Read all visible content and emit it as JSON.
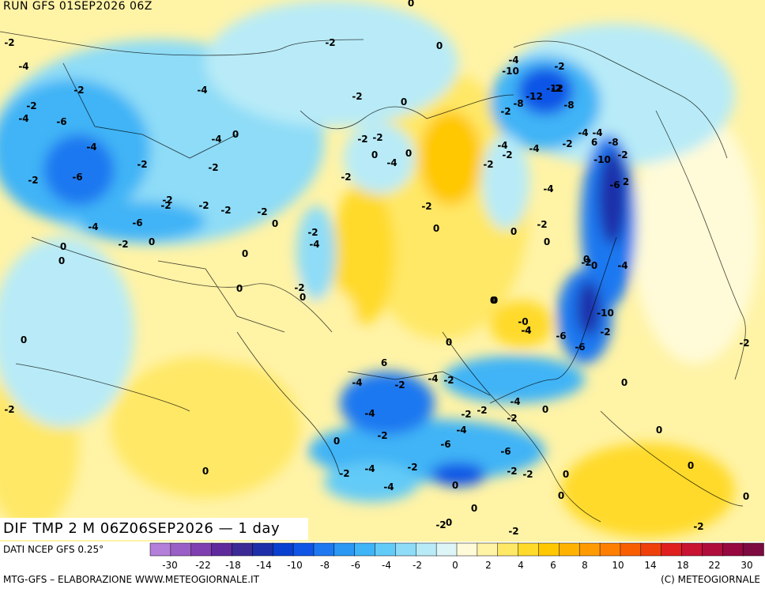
{
  "header": {
    "run_title": "RUN GFS 01SEP2026 06Z"
  },
  "footer": {
    "field_title": "DIF TMP 2 M 06Z06SEP2026 — 1 day",
    "source_label": "DATI NCEP GFS 0.25°",
    "credit_left": "MTG-GFS – ELABORAZIONE WWW.METEOGIORNALE.IT",
    "credit_right": "(C) METEOGIORNALE"
  },
  "legend": {
    "tick_labels": [
      "-30",
      "-22",
      "-18",
      "-14",
      "-10",
      "-8",
      "-6",
      "-4",
      "-2",
      "0",
      "2",
      "4",
      "6",
      "8",
      "10",
      "14",
      "18",
      "22",
      "30"
    ],
    "colors": [
      "#b37fd9",
      "#9a5fc6",
      "#7f3fb0",
      "#5e2a9c",
      "#3c2a95",
      "#1e2fa9",
      "#0a3fcf",
      "#1055e6",
      "#1e78f0",
      "#2b98f4",
      "#3fb4f6",
      "#63cbf7",
      "#8edcf7",
      "#b8ebf7",
      "#ddf5f7",
      "#fffbd8",
      "#fff3a6",
      "#ffe866",
      "#ffda2a",
      "#ffc800",
      "#ffb300",
      "#ff9b00",
      "#ff7f00",
      "#f95f00",
      "#ef3f0a",
      "#e0201e",
      "#c81432",
      "#b00d3c",
      "#96083f",
      "#7d0a40"
    ]
  },
  "map": {
    "labels": [
      {
        "t": "0"
      },
      {
        "t": "-2"
      },
      {
        "t": "-4"
      },
      {
        "t": "-2"
      },
      {
        "t": "-4"
      },
      {
        "t": "-2"
      },
      {
        "t": "-6"
      },
      {
        "t": "-4"
      },
      {
        "t": "-4"
      },
      {
        "t": "-2"
      },
      {
        "t": "-6"
      },
      {
        "t": "-2"
      },
      {
        "t": "-2"
      },
      {
        "t": "-2"
      },
      {
        "t": "-4"
      },
      {
        "t": "-6"
      },
      {
        "t": "-2"
      },
      {
        "t": "0"
      },
      {
        "t": "0"
      },
      {
        "t": "0"
      },
      {
        "t": "-2"
      },
      {
        "t": "0"
      },
      {
        "t": "-4"
      },
      {
        "t": "-2"
      },
      {
        "t": "0"
      },
      {
        "t": "-2"
      },
      {
        "t": "-2"
      },
      {
        "t": "-4"
      },
      {
        "t": "-2"
      },
      {
        "t": "0"
      },
      {
        "t": "-2"
      },
      {
        "t": "0"
      },
      {
        "t": "0"
      },
      {
        "t": "-2"
      },
      {
        "t": "-2"
      },
      {
        "t": "-2"
      },
      {
        "t": "-2"
      },
      {
        "t": "-4"
      },
      {
        "t": "0"
      },
      {
        "t": "0"
      },
      {
        "t": "-2"
      },
      {
        "t": "0"
      },
      {
        "t": "0"
      },
      {
        "t": "-2"
      },
      {
        "t": "-2"
      },
      {
        "t": "0"
      },
      {
        "t": "-2"
      },
      {
        "t": "0"
      },
      {
        "t": "-4"
      },
      {
        "t": "-10"
      },
      {
        "t": "-2"
      },
      {
        "t": "-12"
      },
      {
        "t": "-12"
      },
      {
        "t": "-8"
      },
      {
        "t": "-2"
      },
      {
        "t": "-8"
      },
      {
        "t": "-4"
      },
      {
        "t": "-4"
      },
      {
        "t": "-2"
      },
      {
        "t": "-4"
      },
      {
        "t": "-2"
      },
      {
        "t": "6"
      },
      {
        "t": "-8"
      },
      {
        "t": "-4"
      },
      {
        "t": "-10"
      },
      {
        "t": "-2"
      },
      {
        "t": "-6"
      },
      {
        "t": "2"
      },
      {
        "t": "-4"
      },
      {
        "t": "-2"
      },
      {
        "t": "0"
      },
      {
        "t": "0"
      },
      {
        "t": "0"
      },
      {
        "t": "-2"
      },
      {
        "t": "0"
      },
      {
        "t": "-4"
      },
      {
        "t": "-4"
      },
      {
        "t": "0"
      },
      {
        "t": "-10"
      },
      {
        "t": "-0"
      },
      {
        "t": "-4"
      },
      {
        "t": "-6"
      },
      {
        "t": "-2"
      },
      {
        "t": "-6"
      },
      {
        "t": "0"
      },
      {
        "t": "0"
      },
      {
        "t": "6"
      },
      {
        "t": "-4"
      },
      {
        "t": "-2"
      },
      {
        "t": "-4"
      },
      {
        "t": "-2"
      },
      {
        "t": "-4"
      },
      {
        "t": "0"
      },
      {
        "t": "-2"
      },
      {
        "t": "-2"
      },
      {
        "t": "-4"
      },
      {
        "t": "-2"
      },
      {
        "t": "-4"
      },
      {
        "t": "-2"
      },
      {
        "t": "-6"
      },
      {
        "t": "-6"
      },
      {
        "t": "0"
      },
      {
        "t": "-2"
      },
      {
        "t": "-4"
      },
      {
        "t": "-2"
      },
      {
        "t": "-2"
      },
      {
        "t": "-4"
      },
      {
        "t": "0"
      },
      {
        "t": "-2"
      },
      {
        "t": "0"
      },
      {
        "t": "0"
      },
      {
        "t": "-2"
      },
      {
        "t": "0"
      },
      {
        "t": "0"
      },
      {
        "t": "-2"
      },
      {
        "t": "-2"
      },
      {
        "t": "0"
      },
      {
        "t": "0"
      },
      {
        "t": "0"
      },
      {
        "t": "-2"
      },
      {
        "t": "0"
      },
      {
        "t": "-2"
      },
      {
        "t": "0"
      }
    ]
  }
}
